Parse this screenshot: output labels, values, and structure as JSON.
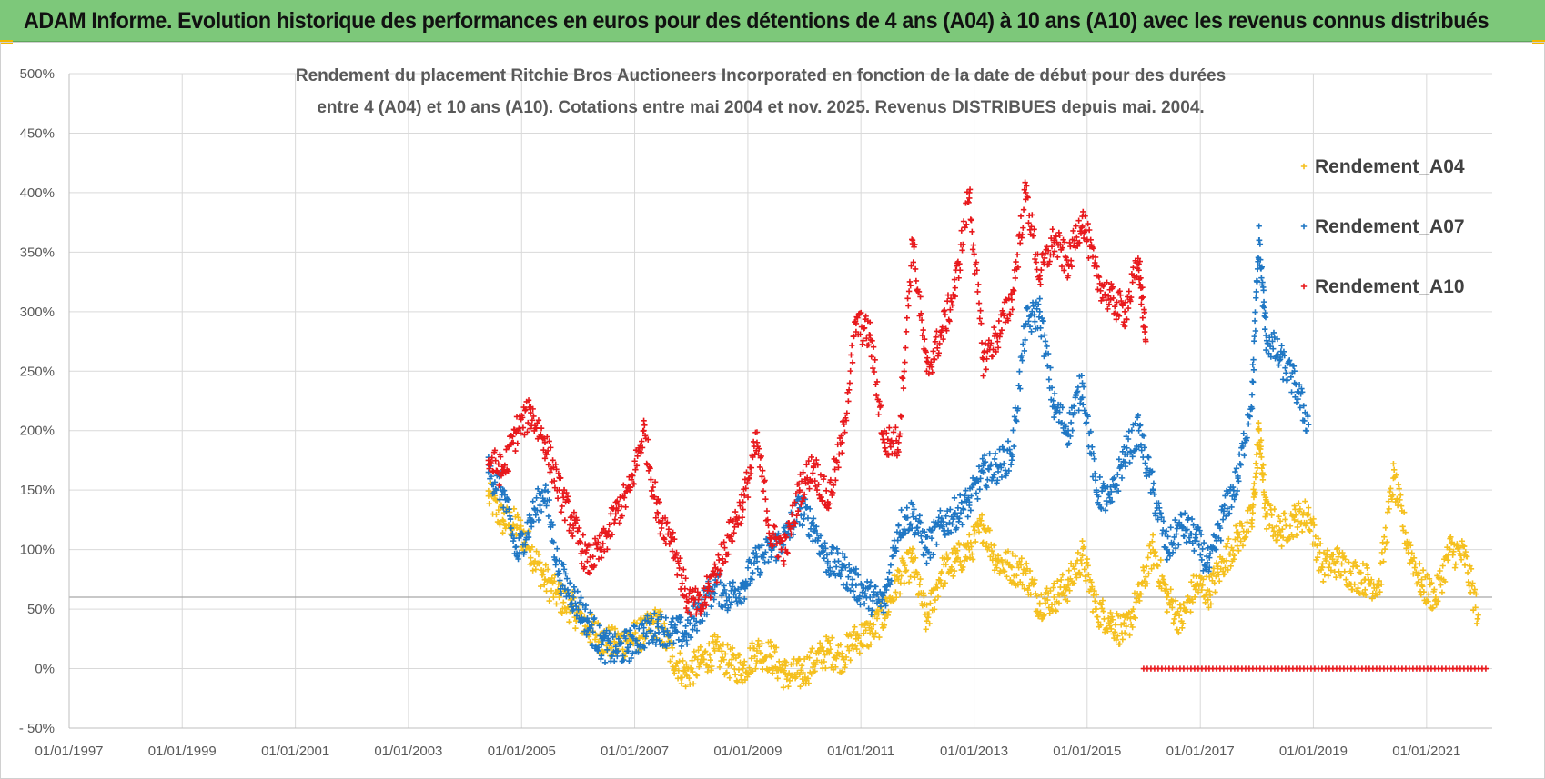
{
  "header": {
    "title": "ADAM Informe. Evolution historique des performances en euros pour des détentions de 4 ans (A04) à 10 ans (A10) avec les revenus connus distribués",
    "background": "#7dc87a"
  },
  "chart_data": {
    "type": "scatter",
    "title_lines": [
      "Rendement du placement Ritchie Bros Auctioneers Incorporated en fonction de la date de début pour des durées",
      "entre 4 (A04) et 10 ans (A10). Cotations entre mai 2004 et nov. 2025. Revenus DISTRIBUES depuis mai. 2004."
    ],
    "x_tick_labels": [
      "01/01/1997",
      "01/01/1999",
      "01/01/2001",
      "01/01/2003",
      "01/01/2005",
      "01/01/2007",
      "01/01/2009",
      "01/01/2011",
      "01/01/2013",
      "01/01/2015",
      "01/01/2017",
      "01/01/2019",
      "01/01/2021"
    ],
    "y_tick_labels": [
      "500%",
      "450%",
      "400%",
      "350%",
      "300%",
      "250%",
      "200%",
      "150%",
      "100%",
      "50%",
      "0%",
      "- 50%"
    ],
    "xlim": [
      "1997-01-01",
      "2022-03-01"
    ],
    "ylim": [
      -50,
      500
    ],
    "y_unit": "%",
    "grid": true,
    "marker": "+",
    "legend_position": "right",
    "reference_line_y": 60,
    "series": [
      {
        "name": "Rendement_A04",
        "color": "#f5c01e",
        "points": [
          [
            "2004-06-01",
            145
          ],
          [
            "2004-09-01",
            125
          ],
          [
            "2004-12-01",
            120
          ],
          [
            "2005-03-01",
            100
          ],
          [
            "2005-06-01",
            75
          ],
          [
            "2005-09-01",
            60
          ],
          [
            "2005-12-01",
            50
          ],
          [
            "2006-03-01",
            35
          ],
          [
            "2006-06-01",
            25
          ],
          [
            "2006-09-01",
            20
          ],
          [
            "2006-12-01",
            25
          ],
          [
            "2007-03-01",
            30
          ],
          [
            "2007-06-01",
            40
          ],
          [
            "2007-09-01",
            10
          ],
          [
            "2007-12-01",
            -5
          ],
          [
            "2008-03-01",
            5
          ],
          [
            "2008-06-01",
            15
          ],
          [
            "2008-09-01",
            5
          ],
          [
            "2008-12-01",
            0
          ],
          [
            "2009-03-01",
            15
          ],
          [
            "2009-06-01",
            10
          ],
          [
            "2009-09-01",
            -5
          ],
          [
            "2009-12-01",
            -5
          ],
          [
            "2010-03-01",
            5
          ],
          [
            "2010-06-01",
            15
          ],
          [
            "2010-09-01",
            10
          ],
          [
            "2010-12-01",
            25
          ],
          [
            "2011-03-01",
            30
          ],
          [
            "2011-06-01",
            45
          ],
          [
            "2011-09-01",
            75
          ],
          [
            "2011-12-01",
            90
          ],
          [
            "2012-03-01",
            40
          ],
          [
            "2012-06-01",
            80
          ],
          [
            "2012-09-01",
            90
          ],
          [
            "2012-12-01",
            100
          ],
          [
            "2013-03-01",
            120
          ],
          [
            "2013-06-01",
            90
          ],
          [
            "2013-09-01",
            85
          ],
          [
            "2013-12-01",
            80
          ],
          [
            "2014-03-01",
            55
          ],
          [
            "2014-06-01",
            60
          ],
          [
            "2014-09-01",
            70
          ],
          [
            "2014-12-01",
            95
          ],
          [
            "2015-03-01",
            50
          ],
          [
            "2015-06-01",
            40
          ],
          [
            "2015-09-01",
            30
          ],
          [
            "2015-12-01",
            60
          ],
          [
            "2016-03-01",
            100
          ],
          [
            "2016-06-01",
            60
          ],
          [
            "2016-09-01",
            40
          ],
          [
            "2016-12-01",
            70
          ],
          [
            "2017-03-01",
            65
          ],
          [
            "2017-06-01",
            90
          ],
          [
            "2017-09-01",
            110
          ],
          [
            "2017-12-01",
            125
          ],
          [
            "2018-01-15",
            200
          ],
          [
            "2018-03-01",
            130
          ],
          [
            "2018-06-01",
            115
          ],
          [
            "2018-09-01",
            125
          ],
          [
            "2018-12-01",
            130
          ],
          [
            "2019-03-01",
            85
          ],
          [
            "2019-06-01",
            90
          ],
          [
            "2019-09-01",
            80
          ],
          [
            "2019-12-01",
            75
          ],
          [
            "2020-03-01",
            70
          ],
          [
            "2020-06-01",
            160
          ],
          [
            "2020-09-01",
            105
          ],
          [
            "2020-12-01",
            70
          ],
          [
            "2021-03-01",
            60
          ],
          [
            "2021-06-01",
            100
          ],
          [
            "2021-09-01",
            95
          ],
          [
            "2021-12-01",
            45
          ]
        ]
      },
      {
        "name": "Rendement_A07",
        "color": "#1f77c4",
        "points": [
          [
            "2004-06-01",
            165
          ],
          [
            "2004-09-01",
            150
          ],
          [
            "2004-12-01",
            95
          ],
          [
            "2005-03-01",
            125
          ],
          [
            "2005-06-01",
            150
          ],
          [
            "2005-09-01",
            80
          ],
          [
            "2005-12-01",
            60
          ],
          [
            "2006-03-01",
            40
          ],
          [
            "2006-06-01",
            20
          ],
          [
            "2006-09-01",
            15
          ],
          [
            "2006-12-01",
            20
          ],
          [
            "2007-03-01",
            30
          ],
          [
            "2007-06-01",
            35
          ],
          [
            "2007-09-01",
            30
          ],
          [
            "2007-12-01",
            30
          ],
          [
            "2008-03-01",
            50
          ],
          [
            "2008-06-01",
            70
          ],
          [
            "2008-09-01",
            60
          ],
          [
            "2008-12-01",
            70
          ],
          [
            "2009-03-01",
            90
          ],
          [
            "2009-06-01",
            100
          ],
          [
            "2009-09-01",
            110
          ],
          [
            "2009-12-01",
            135
          ],
          [
            "2010-03-01",
            120
          ],
          [
            "2010-06-01",
            90
          ],
          [
            "2010-09-01",
            85
          ],
          [
            "2010-12-01",
            70
          ],
          [
            "2011-03-01",
            60
          ],
          [
            "2011-06-01",
            55
          ],
          [
            "2011-09-01",
            120
          ],
          [
            "2011-12-01",
            130
          ],
          [
            "2012-03-01",
            100
          ],
          [
            "2012-06-01",
            120
          ],
          [
            "2012-09-01",
            130
          ],
          [
            "2012-12-01",
            140
          ],
          [
            "2013-03-01",
            165
          ],
          [
            "2013-06-01",
            170
          ],
          [
            "2013-09-01",
            180
          ],
          [
            "2013-12-01",
            290
          ],
          [
            "2014-03-01",
            300
          ],
          [
            "2014-06-01",
            220
          ],
          [
            "2014-09-01",
            200
          ],
          [
            "2014-12-01",
            240
          ],
          [
            "2015-03-01",
            150
          ],
          [
            "2015-06-01",
            140
          ],
          [
            "2015-09-01",
            180
          ],
          [
            "2015-12-01",
            200
          ],
          [
            "2016-03-01",
            150
          ],
          [
            "2016-06-01",
            100
          ],
          [
            "2016-09-01",
            120
          ],
          [
            "2016-12-01",
            110
          ],
          [
            "2017-03-01",
            85
          ],
          [
            "2017-06-01",
            130
          ],
          [
            "2017-09-01",
            160
          ],
          [
            "2017-12-01",
            230
          ],
          [
            "2018-01-15",
            360
          ],
          [
            "2018-03-01",
            280
          ],
          [
            "2018-06-01",
            260
          ],
          [
            "2018-09-01",
            240
          ],
          [
            "2018-12-01",
            205
          ]
        ]
      },
      {
        "name": "Rendement_A10",
        "color": "#e8191c",
        "points": [
          [
            "2004-06-01",
            175
          ],
          [
            "2004-09-01",
            165
          ],
          [
            "2004-12-01",
            200
          ],
          [
            "2005-03-01",
            215
          ],
          [
            "2005-06-01",
            190
          ],
          [
            "2005-09-01",
            150
          ],
          [
            "2005-12-01",
            120
          ],
          [
            "2006-03-01",
            90
          ],
          [
            "2006-06-01",
            100
          ],
          [
            "2006-09-01",
            130
          ],
          [
            "2006-12-01",
            150
          ],
          [
            "2007-03-01",
            200
          ],
          [
            "2007-06-01",
            130
          ],
          [
            "2007-09-01",
            110
          ],
          [
            "2007-12-01",
            60
          ],
          [
            "2008-03-01",
            50
          ],
          [
            "2008-06-01",
            80
          ],
          [
            "2008-09-01",
            110
          ],
          [
            "2008-12-01",
            140
          ],
          [
            "2009-03-01",
            190
          ],
          [
            "2009-06-01",
            110
          ],
          [
            "2009-09-01",
            100
          ],
          [
            "2009-12-01",
            150
          ],
          [
            "2010-03-01",
            170
          ],
          [
            "2010-06-01",
            140
          ],
          [
            "2010-09-01",
            190
          ],
          [
            "2010-12-01",
            290
          ],
          [
            "2011-03-01",
            280
          ],
          [
            "2011-06-01",
            190
          ],
          [
            "2011-09-01",
            190
          ],
          [
            "2011-12-01",
            360
          ],
          [
            "2012-03-01",
            250
          ],
          [
            "2012-06-01",
            280
          ],
          [
            "2012-09-01",
            320
          ],
          [
            "2012-12-01",
            400
          ],
          [
            "2013-03-01",
            260
          ],
          [
            "2013-06-01",
            280
          ],
          [
            "2013-09-01",
            310
          ],
          [
            "2013-12-01",
            400
          ],
          [
            "2014-03-01",
            330
          ],
          [
            "2014-06-01",
            360
          ],
          [
            "2014-09-01",
            340
          ],
          [
            "2014-12-01",
            380
          ],
          [
            "2015-03-01",
            330
          ],
          [
            "2015-06-01",
            310
          ],
          [
            "2015-09-01",
            300
          ],
          [
            "2015-12-01",
            340
          ],
          [
            "2016-01-15",
            275
          ]
        ],
        "zero_band": [
          "2016-01-01",
          "2022-02-01",
          0
        ]
      }
    ]
  }
}
